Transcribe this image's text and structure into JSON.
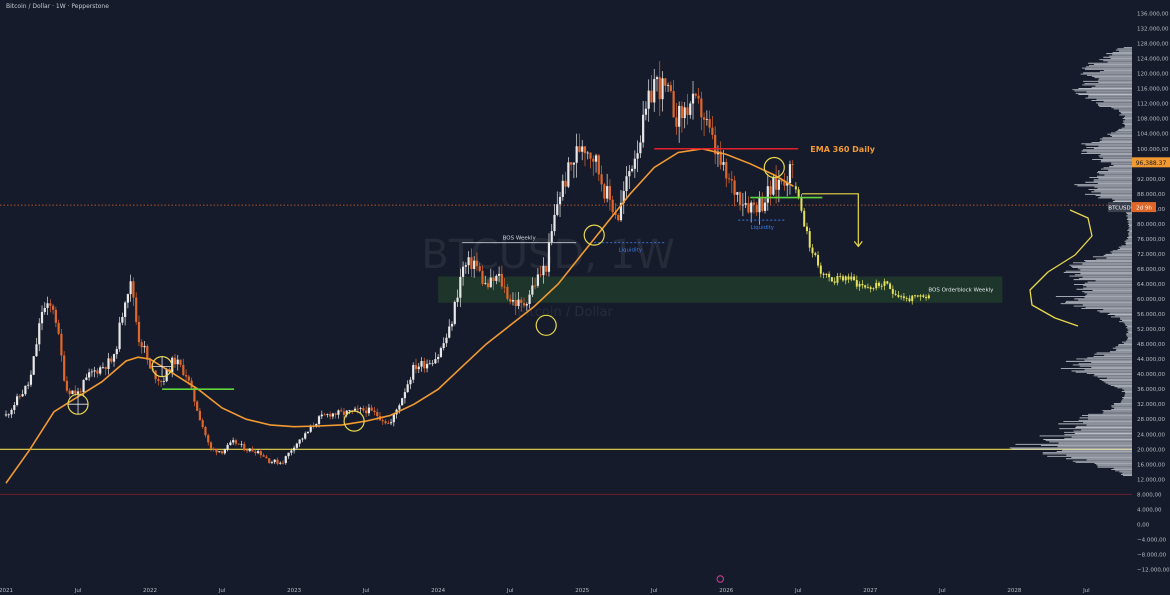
{
  "header": {
    "symbol_line": "Bitcoin / Dollar · 1W · Pepperstone"
  },
  "watermark": {
    "ticker": "BTCUSD, 1W",
    "name": "Bitcoin / Dollar"
  },
  "price_tags": {
    "current": "96,388.37",
    "symbol": "BTCUSD",
    "countdown": "2d 9h"
  },
  "annotations": {
    "ema": "EMA 360 Daily",
    "bos_weekly": "BOS Weekly",
    "liquidity_1": "Liquidity",
    "liquidity_2": "Liquidity",
    "orderblock": "BOS Orderblock Weekly"
  },
  "colors": {
    "background": "#161b2b",
    "bull": "#e8e8e8",
    "bear": "#e0672a",
    "ema": "#f29a32",
    "support": "#e8d84a",
    "resistance": "#e0202a",
    "bos_green": "#5fd43c",
    "projection": "#e6e35a",
    "orderblock_zone": "#1f3a2a",
    "liquidity": "#3c7be8"
  },
  "chart_data": {
    "type": "candlestick",
    "series_name": "BTCUSD",
    "y_axis": {
      "ticks": [
        136000,
        132000,
        128000,
        124000,
        120000,
        116000,
        112000,
        108000,
        104000,
        100000,
        96000,
        92000,
        88000,
        84000,
        80000,
        76000,
        72000,
        68000,
        64000,
        60000,
        56000,
        52000,
        48000,
        44000,
        40000,
        36000,
        32000,
        28000,
        24000,
        20000,
        16000,
        12000,
        8000,
        4000,
        0,
        -4000,
        -8000,
        -12000
      ],
      "tick_labels": [
        "136.000,00",
        "132.000,00",
        "128.000,00",
        "124.000,00",
        "120.000,00",
        "116.000,00",
        "112.000,00",
        "108.000,00",
        "104.000,00",
        "100.000,00",
        "96.000,00",
        "92.000,00",
        "88.000,00",
        "84.000,00",
        "80.000,00",
        "76.000,00",
        "72.000,00",
        "68.000,00",
        "64.000,00",
        "60.000,00",
        "56.000,00",
        "52.000,00",
        "48.000,00",
        "44.000,00",
        "40.000,00",
        "36.000,00",
        "32.000,00",
        "28.000,00",
        "24.000,00",
        "20.000,00",
        "16.000,00",
        "12.000,00",
        "8.000,00",
        "4.000,00",
        "0,00",
        "−4.000,00",
        "−8.000,00",
        "−12.000,00"
      ],
      "range": [
        -14000,
        138000
      ]
    },
    "x_axis": {
      "labels": [
        "2021",
        "Jul",
        "2022",
        "Jul",
        "2023",
        "Jul",
        "2024",
        "Jul",
        "2025",
        "Jul",
        "2026",
        "Jul",
        "2027",
        "Jul",
        "2028",
        "Jul"
      ],
      "label_months": [
        0,
        6,
        12,
        18,
        24,
        30,
        36,
        42,
        48,
        54,
        60,
        66,
        72,
        78,
        84,
        90
      ],
      "range_months": [
        -0.5,
        93.8
      ]
    },
    "candle_path": [
      [
        0,
        29000
      ],
      [
        2,
        38000
      ],
      [
        3,
        57000
      ],
      [
        4,
        58000
      ],
      [
        5,
        36000
      ],
      [
        6,
        35000
      ],
      [
        7,
        40000
      ],
      [
        9,
        44000
      ],
      [
        10,
        62000
      ],
      [
        10.5,
        64000
      ],
      [
        11,
        50000
      ],
      [
        11.5,
        47000
      ],
      [
        12,
        41000
      ],
      [
        13,
        38000
      ],
      [
        14,
        44000
      ],
      [
        15,
        40000
      ],
      [
        16,
        30000
      ],
      [
        17,
        20000
      ],
      [
        18,
        19500
      ],
      [
        19,
        22000
      ],
      [
        20,
        20000
      ],
      [
        21,
        19500
      ],
      [
        22,
        16800
      ],
      [
        23,
        16500
      ],
      [
        24,
        21000
      ],
      [
        25,
        24000
      ],
      [
        26,
        28000
      ],
      [
        27,
        29500
      ],
      [
        28,
        29500
      ],
      [
        29,
        30000
      ],
      [
        30,
        30500
      ],
      [
        31,
        29000
      ],
      [
        32,
        26500
      ],
      [
        33,
        34000
      ],
      [
        34,
        42000
      ],
      [
        35,
        43000
      ],
      [
        36,
        45000
      ],
      [
        37,
        52000
      ],
      [
        38,
        68000
      ],
      [
        39,
        70000
      ],
      [
        40,
        63000
      ],
      [
        41,
        66000
      ],
      [
        42,
        60000
      ],
      [
        43,
        58000
      ],
      [
        44,
        64000
      ],
      [
        45,
        69000
      ],
      [
        46,
        87000
      ],
      [
        47,
        95000
      ],
      [
        48,
        102000
      ],
      [
        49,
        98000
      ],
      [
        50,
        88000
      ],
      [
        51,
        82000
      ],
      [
        52,
        95000
      ],
      [
        53,
        105000
      ],
      [
        54,
        118000
      ],
      [
        55,
        115000
      ],
      [
        56,
        108000
      ],
      [
        57,
        112000
      ],
      [
        58,
        110000
      ],
      [
        59,
        100000
      ],
      [
        60,
        92000
      ],
      [
        61,
        88000
      ],
      [
        62,
        85000
      ],
      [
        63,
        86000
      ],
      [
        64,
        90000
      ],
      [
        65,
        93000
      ],
      [
        65.6,
        95000
      ]
    ],
    "ema_360_daily": [
      [
        0,
        11000
      ],
      [
        2,
        20000
      ],
      [
        4,
        30000
      ],
      [
        6,
        34000
      ],
      [
        8,
        38000
      ],
      [
        10,
        43500
      ],
      [
        11,
        44500
      ],
      [
        12,
        44000
      ],
      [
        14,
        40000
      ],
      [
        16,
        36000
      ],
      [
        18,
        31000
      ],
      [
        20,
        28000
      ],
      [
        22,
        26500
      ],
      [
        24,
        26000
      ],
      [
        26,
        26200
      ],
      [
        28,
        26500
      ],
      [
        30,
        27500
      ],
      [
        32,
        29000
      ],
      [
        34,
        32000
      ],
      [
        36,
        36000
      ],
      [
        38,
        42000
      ],
      [
        40,
        48000
      ],
      [
        42,
        53000
      ],
      [
        44,
        58000
      ],
      [
        46,
        64000
      ],
      [
        48,
        72000
      ],
      [
        50,
        80000
      ],
      [
        52,
        88000
      ],
      [
        54,
        95000
      ],
      [
        56,
        99000
      ],
      [
        58,
        100000
      ],
      [
        60,
        98500
      ],
      [
        62,
        96000
      ],
      [
        64,
        93000
      ],
      [
        65.6,
        90000
      ]
    ],
    "projection_path": [
      [
        65.8,
        90000
      ],
      [
        66.5,
        80000
      ],
      [
        67,
        74000
      ],
      [
        67.5,
        70000
      ],
      [
        68,
        67000
      ],
      [
        69,
        65000
      ],
      [
        70,
        66000
      ],
      [
        71,
        64000
      ],
      [
        72,
        63000
      ],
      [
        73,
        64000
      ],
      [
        74,
        62000
      ],
      [
        75,
        60000
      ],
      [
        76,
        60000
      ],
      [
        77,
        61000
      ]
    ],
    "levels": {
      "current_price": 96388.37,
      "dotted_price": 85000,
      "support": 20000,
      "dark_red_line": 8000
    },
    "orderblock_zone": {
      "from_month": 36,
      "to_month": 83,
      "low": 59000,
      "high": 66000
    },
    "ema_resistance_line": {
      "from_month": 54,
      "to_month": 66,
      "price": 100000
    },
    "bos_lines": [
      {
        "from_month": 13,
        "to_month": 19,
        "price": 36000
      },
      {
        "from_month": 62,
        "to_month": 68,
        "price": 87000
      },
      {
        "from_month": 38,
        "to_month": 47.5,
        "price": 75000
      }
    ],
    "liquidity_lines": [
      {
        "from_month": 49,
        "to_month": 55,
        "price": 75000
      },
      {
        "from_month": 61,
        "to_month": 65,
        "price": 81000
      }
    ],
    "circles": [
      [
        6,
        32000
      ],
      [
        13,
        42000
      ],
      [
        29,
        27500
      ],
      [
        45,
        53000
      ],
      [
        49,
        77000
      ],
      [
        64,
        95000
      ]
    ],
    "volume_profile_peaks": [
      {
        "price": 20000,
        "strength": 1.0
      },
      {
        "price": 27000,
        "strength": 0.55
      },
      {
        "price": 42000,
        "strength": 0.6
      },
      {
        "price": 60000,
        "strength": 0.65
      },
      {
        "price": 68000,
        "strength": 0.55
      },
      {
        "price": 90000,
        "strength": 0.5
      },
      {
        "price": 100000,
        "strength": 0.45
      },
      {
        "price": 115000,
        "strength": 0.55
      },
      {
        "price": 122000,
        "strength": 0.35
      }
    ]
  }
}
